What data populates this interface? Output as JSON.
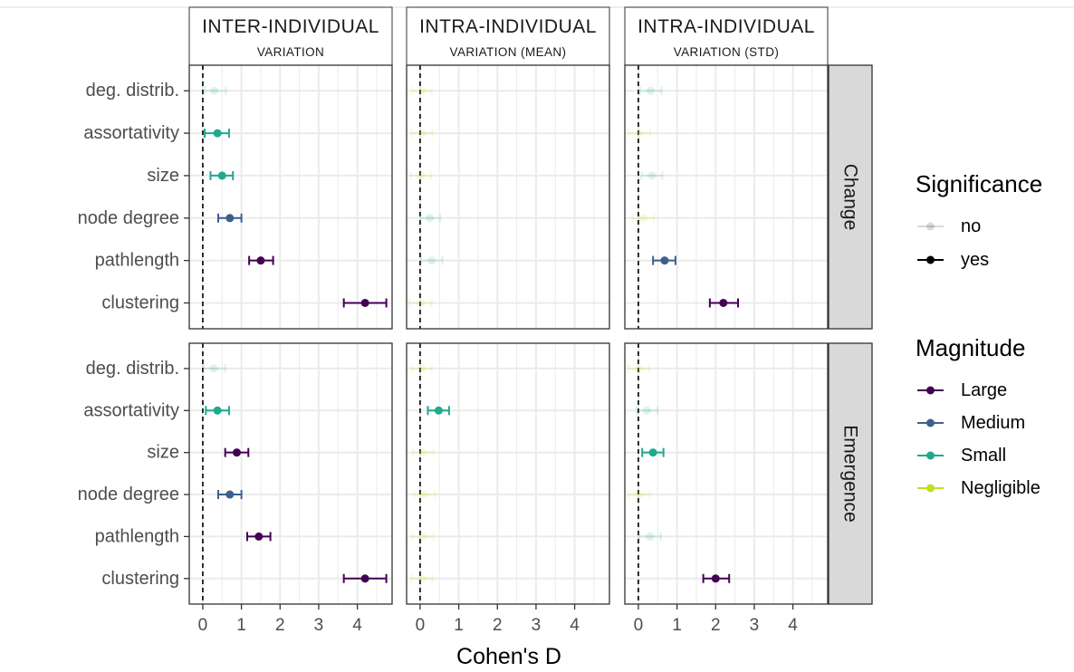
{
  "chart_data": {
    "type": "scatter",
    "subtype": "dot-and-whisker (facet grid)",
    "xlabel": "Cohen's D",
    "ylabel": "",
    "xlim": [
      -0.35,
      4.9
    ],
    "xticks": [
      "0",
      "1",
      "2",
      "3",
      "4"
    ],
    "grid": true,
    "columns": [
      {
        "title": "INTER-INDIVIDUAL",
        "subtitle": "VARIATION"
      },
      {
        "title": "INTRA-INDIVIDUAL",
        "subtitle": "VARIATION (MEAN)"
      },
      {
        "title": "INTRA-INDIVIDUAL",
        "subtitle": "VARIATION (STD)"
      }
    ],
    "rows": [
      "Change",
      "Emergence"
    ],
    "categories": [
      "deg. distrib.",
      "assortativity",
      "size",
      "node degree",
      "pathlength",
      "clustering"
    ],
    "legend": {
      "placement": "right",
      "significance": {
        "title": "Significance",
        "items": [
          "no",
          "yes"
        ]
      },
      "magnitude": {
        "title": "Magnitude",
        "items": [
          "Large",
          "Medium",
          "Small",
          "Negligible"
        ]
      }
    },
    "colors": {
      "Large": "#440154",
      "Medium": "#3b5f8f",
      "Small": "#21a88f",
      "Negligible": "#c2df23",
      "axis_text": "#4d4d4d",
      "strip_bg": "#d9d9d9",
      "grid": "#ebebeb"
    },
    "panels": [
      {
        "column": 0,
        "row": "Change",
        "points": [
          {
            "category": "deg. distrib.",
            "d": 0.3,
            "lo": 0.05,
            "hi": 0.6,
            "magnitude": "Small",
            "significant": false
          },
          {
            "category": "assortativity",
            "d": 0.38,
            "lo": 0.05,
            "hi": 0.68,
            "magnitude": "Small",
            "significant": true
          },
          {
            "category": "size",
            "d": 0.5,
            "lo": 0.2,
            "hi": 0.78,
            "magnitude": "Small",
            "significant": true
          },
          {
            "category": "node degree",
            "d": 0.7,
            "lo": 0.4,
            "hi": 1.0,
            "magnitude": "Medium",
            "significant": true
          },
          {
            "category": "pathlength",
            "d": 1.5,
            "lo": 1.2,
            "hi": 1.82,
            "magnitude": "Large",
            "significant": true
          },
          {
            "category": "clustering",
            "d": 4.2,
            "lo": 3.65,
            "hi": 4.75,
            "magnitude": "Large",
            "significant": true
          }
        ]
      },
      {
        "column": 1,
        "row": "Change",
        "points": [
          {
            "category": "deg. distrib.",
            "d": 0.05,
            "lo": -0.2,
            "hi": 0.3,
            "magnitude": "Negligible",
            "significant": false
          },
          {
            "category": "assortativity",
            "d": 0.05,
            "lo": -0.22,
            "hi": 0.32,
            "magnitude": "Negligible",
            "significant": false
          },
          {
            "category": "size",
            "d": 0.02,
            "lo": -0.25,
            "hi": 0.28,
            "magnitude": "Negligible",
            "significant": false
          },
          {
            "category": "node degree",
            "d": 0.25,
            "lo": 0.0,
            "hi": 0.52,
            "magnitude": "Small",
            "significant": false
          },
          {
            "category": "pathlength",
            "d": 0.3,
            "lo": 0.02,
            "hi": 0.58,
            "magnitude": "Small",
            "significant": false
          },
          {
            "category": "clustering",
            "d": 0.02,
            "lo": -0.28,
            "hi": 0.3,
            "magnitude": "Negligible",
            "significant": false
          }
        ]
      },
      {
        "column": 2,
        "row": "Change",
        "points": [
          {
            "category": "deg. distrib.",
            "d": 0.32,
            "lo": 0.05,
            "hi": 0.6,
            "magnitude": "Small",
            "significant": false
          },
          {
            "category": "assortativity",
            "d": 0.02,
            "lo": -0.25,
            "hi": 0.3,
            "magnitude": "Negligible",
            "significant": false
          },
          {
            "category": "size",
            "d": 0.35,
            "lo": 0.08,
            "hi": 0.62,
            "magnitude": "Small",
            "significant": false
          },
          {
            "category": "node degree",
            "d": 0.12,
            "lo": -0.15,
            "hi": 0.4,
            "magnitude": "Negligible",
            "significant": false
          },
          {
            "category": "pathlength",
            "d": 0.68,
            "lo": 0.38,
            "hi": 0.96,
            "magnitude": "Medium",
            "significant": true
          },
          {
            "category": "clustering",
            "d": 2.2,
            "lo": 1.85,
            "hi": 2.58,
            "magnitude": "Large",
            "significant": true
          }
        ]
      },
      {
        "column": 0,
        "row": "Emergence",
        "points": [
          {
            "category": "deg. distrib.",
            "d": 0.28,
            "lo": 0.02,
            "hi": 0.58,
            "magnitude": "Small",
            "significant": false
          },
          {
            "category": "assortativity",
            "d": 0.38,
            "lo": 0.08,
            "hi": 0.68,
            "magnitude": "Small",
            "significant": true
          },
          {
            "category": "size",
            "d": 0.88,
            "lo": 0.58,
            "hi": 1.18,
            "magnitude": "Large",
            "significant": true
          },
          {
            "category": "node degree",
            "d": 0.7,
            "lo": 0.4,
            "hi": 1.0,
            "magnitude": "Medium",
            "significant": true
          },
          {
            "category": "pathlength",
            "d": 1.45,
            "lo": 1.15,
            "hi": 1.75,
            "magnitude": "Large",
            "significant": true
          },
          {
            "category": "clustering",
            "d": 4.2,
            "lo": 3.65,
            "hi": 4.75,
            "magnitude": "Large",
            "significant": true
          }
        ]
      },
      {
        "column": 1,
        "row": "Emergence",
        "points": [
          {
            "category": "deg. distrib.",
            "d": 0.05,
            "lo": -0.2,
            "hi": 0.3,
            "magnitude": "Negligible",
            "significant": false
          },
          {
            "category": "assortativity",
            "d": 0.48,
            "lo": 0.2,
            "hi": 0.75,
            "magnitude": "Small",
            "significant": true
          },
          {
            "category": "size",
            "d": 0.08,
            "lo": -0.18,
            "hi": 0.35,
            "magnitude": "Negligible",
            "significant": false
          },
          {
            "category": "node degree",
            "d": 0.1,
            "lo": -0.15,
            "hi": 0.38,
            "magnitude": "Negligible",
            "significant": false
          },
          {
            "category": "pathlength",
            "d": 0.08,
            "lo": -0.2,
            "hi": 0.35,
            "magnitude": "Negligible",
            "significant": false
          },
          {
            "category": "clustering",
            "d": 0.05,
            "lo": -0.22,
            "hi": 0.32,
            "magnitude": "Negligible",
            "significant": false
          }
        ]
      },
      {
        "column": 2,
        "row": "Emergence",
        "points": [
          {
            "category": "deg. distrib.",
            "d": 0.02,
            "lo": -0.25,
            "hi": 0.28,
            "magnitude": "Negligible",
            "significant": false
          },
          {
            "category": "assortativity",
            "d": 0.22,
            "lo": -0.05,
            "hi": 0.5,
            "magnitude": "Small",
            "significant": false
          },
          {
            "category": "size",
            "d": 0.38,
            "lo": 0.1,
            "hi": 0.65,
            "magnitude": "Small",
            "significant": true
          },
          {
            "category": "node degree",
            "d": 0.02,
            "lo": -0.25,
            "hi": 0.3,
            "magnitude": "Negligible",
            "significant": false
          },
          {
            "category": "pathlength",
            "d": 0.3,
            "lo": 0.02,
            "hi": 0.58,
            "magnitude": "Small",
            "significant": false
          },
          {
            "category": "clustering",
            "d": 2.0,
            "lo": 1.68,
            "hi": 2.35,
            "magnitude": "Large",
            "significant": true
          }
        ]
      }
    ]
  }
}
